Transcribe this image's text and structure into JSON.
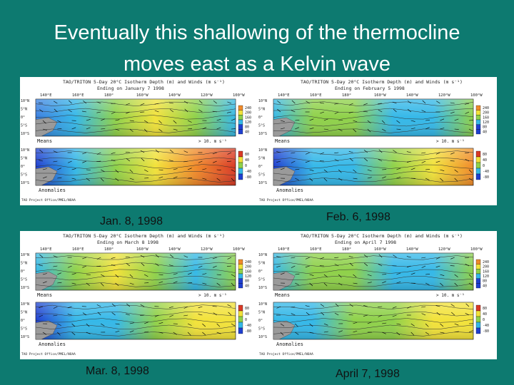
{
  "slide": {
    "title_line1": "Eventually this shallowing of the thermocline",
    "title_line2": "moves east as a Kelvin wave"
  },
  "panels": [
    {
      "header": "TAO/TRITON 5-Day 20°C Isotherm Depth (m) and Winds (m s⁻¹)",
      "ending": "Ending on January 7 1998",
      "caption": "Jan. 8, 1998"
    },
    {
      "header": "TAO/TRITON 5-Day 20°C Isotherm Depth (m) and Winds (m s⁻¹)",
      "ending": "Ending on February 5 1998",
      "caption": "Feb. 6, 1998"
    },
    {
      "header": "TAO/TRITON 5-Day 20°C Isotherm Depth (m) and Winds (m s⁻¹)",
      "ending": "Ending on March 8 1998",
      "caption": "Mar. 8, 1998"
    },
    {
      "header": "TAO/TRITON 5-Day 20°C Isotherm Depth (m) and Winds (m s⁻¹)",
      "ending": "Ending on April 7 1998",
      "caption": "April 7, 1998"
    }
  ],
  "map_labels": {
    "lon_ticks": [
      "140°E",
      "160°E",
      "180°",
      "160°W",
      "140°W",
      "120°W",
      "100°W"
    ],
    "lat_ticks": [
      "10°N",
      "5°N",
      "0°",
      "5°S",
      "10°S"
    ],
    "means": "Means",
    "anomalies": "Anomalies",
    "scale": "> 10. m s⁻¹",
    "credit": "TAO Project Office/PMEL/NOAA",
    "means_legend": [
      "240",
      "200",
      "160",
      "120",
      "80",
      "40"
    ],
    "anom_legend": [
      "80",
      "40",
      "0",
      "-40",
      "-80"
    ]
  },
  "colors": {
    "background": "#0d7a70",
    "deep": "#1f3fd0",
    "cyan": "#35b8e8",
    "green": "#8fd14a",
    "yellow": "#f2e23a",
    "orange": "#f08a2a",
    "red": "#d93a26"
  }
}
